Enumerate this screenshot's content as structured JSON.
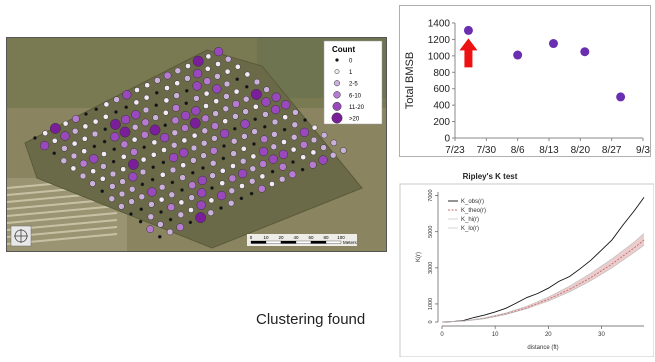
{
  "map": {
    "legend_title": "Count",
    "legend_items": [
      "0",
      "1",
      "2-5",
      "6-10",
      "11-20",
      ">20"
    ],
    "scale_ticks": [
      "0",
      "10",
      "20",
      "40",
      "60",
      "80",
      "100"
    ],
    "scale_unit": "Meters",
    "colors": {
      "zero": "#111111",
      "one": "#f2eaf5",
      "two_five": "#cbb0db",
      "six_ten": "#b67ad0",
      "eleven_twenty": "#9a48bd",
      "over_twenty": "#7a1e9a"
    }
  },
  "scatter_chart": {
    "chart_data": {
      "type": "scatter",
      "ylabel": "Total BMSB",
      "categories_text": [
        "7/23",
        "7/30",
        "8/6",
        "8/13",
        "8/20",
        "8/27",
        "9/3"
      ],
      "x": [
        "7/26",
        "8/6",
        "8/14",
        "8/21",
        "8/29"
      ],
      "y": [
        1310,
        1010,
        1150,
        1050,
        500
      ],
      "ylim": [
        0,
        1400
      ],
      "yticks": [
        "0",
        "200",
        "400",
        "600",
        "800",
        "1000",
        "1200",
        "1400"
      ],
      "point_color": "#6a2fb0",
      "annotation": "red arrow pointing to first point",
      "arrow_color": "#ee1111"
    }
  },
  "ripley_chart": {
    "chart_data": {
      "type": "line",
      "title": "Ripley's K test",
      "xlabel": "distance (ft)",
      "ylabel": "K(r)",
      "xticks": [
        "0",
        "10",
        "20",
        "30"
      ],
      "yticks": [
        "0",
        "1000",
        "3000",
        "5000",
        "7000"
      ],
      "legend": [
        "K_obs(r)",
        "K_theo(r)",
        "K_hi(r)",
        "K_lo(r)"
      ],
      "xlim": [
        0,
        38
      ],
      "ylim": [
        0,
        7200
      ],
      "series": [
        {
          "name": "K_obs(r)",
          "x": [
            0,
            2,
            4,
            6,
            8,
            10,
            12,
            14,
            16,
            18,
            20,
            22,
            24,
            26,
            28,
            30,
            32,
            34,
            36,
            38
          ],
          "y": [
            0,
            20,
            80,
            250,
            380,
            560,
            760,
            1050,
            1360,
            1580,
            1870,
            2250,
            2520,
            2950,
            3420,
            3980,
            4550,
            5350,
            6100,
            6900
          ]
        },
        {
          "name": "K_theo(r)",
          "x": [
            0,
            4,
            8,
            12,
            16,
            20,
            24,
            28,
            32,
            36,
            38
          ],
          "y": [
            0,
            50,
            200,
            450,
            800,
            1260,
            1810,
            2460,
            3220,
            4070,
            4540
          ]
        },
        {
          "name": "K_hi(r)",
          "x": [
            0,
            4,
            8,
            12,
            16,
            20,
            24,
            28,
            32,
            36,
            38
          ],
          "y": [
            0,
            60,
            230,
            500,
            880,
            1380,
            1990,
            2700,
            3500,
            4400,
            4900
          ]
        },
        {
          "name": "K_lo(r)",
          "x": [
            0,
            4,
            8,
            12,
            16,
            20,
            24,
            28,
            32,
            36,
            38
          ],
          "y": [
            0,
            45,
            180,
            410,
            740,
            1160,
            1670,
            2280,
            3000,
            3820,
            4250
          ]
        }
      ]
    }
  },
  "caption": "Clustering found"
}
